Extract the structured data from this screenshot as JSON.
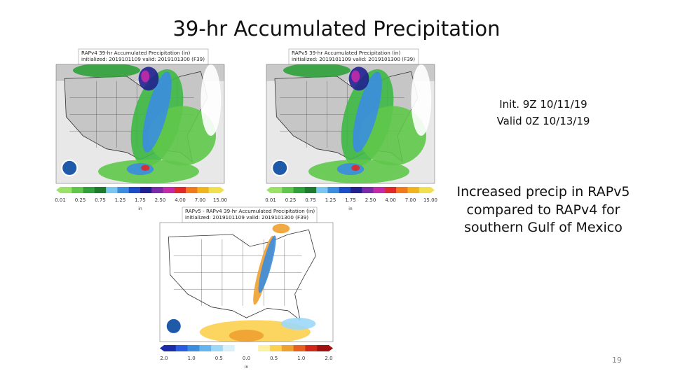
{
  "title": "39-hr Accumulated Precipitation",
  "panels": [
    {
      "header": [
        "RAPv4 39-hr Accumulated Precipitation (in)",
        "initialized: 2019101109 valid: 2019101300 (F39)"
      ],
      "colorbar_labels": [
        "0.01",
        "0.25",
        "0.75",
        "1.25",
        "1.75",
        "2.50",
        "4.00",
        "7.00",
        "15.00"
      ],
      "unit": "in"
    },
    {
      "header": [
        "RAPv5 39-hr Accumulated Precipitation (in)",
        "initialized: 2019101109 valid: 2019101300 (F39)"
      ],
      "colorbar_labels": [
        "0.01",
        "0.25",
        "0.75",
        "1.25",
        "1.75",
        "2.50",
        "4.00",
        "7.00",
        "15.00"
      ],
      "unit": "in"
    },
    {
      "header": [
        "RAPv5 - RAPv4 39-hr Accumulated Precipitation (in)",
        "initialized: 2019101109 valid: 2019101300 (F39)"
      ],
      "colorbar_labels": [
        "2.0",
        "1.0",
        "0.5",
        "0.0",
        "0.5",
        "1.0",
        "2.0"
      ],
      "unit": "in"
    }
  ],
  "notes": {
    "init": "Init. 9Z 10/11/19",
    "valid": "Valid 0Z 10/13/19",
    "finding": "Increased precip in RAPv5 compared to RAPv4 for southern Gulf of Mexico"
  },
  "page_number": "19"
}
